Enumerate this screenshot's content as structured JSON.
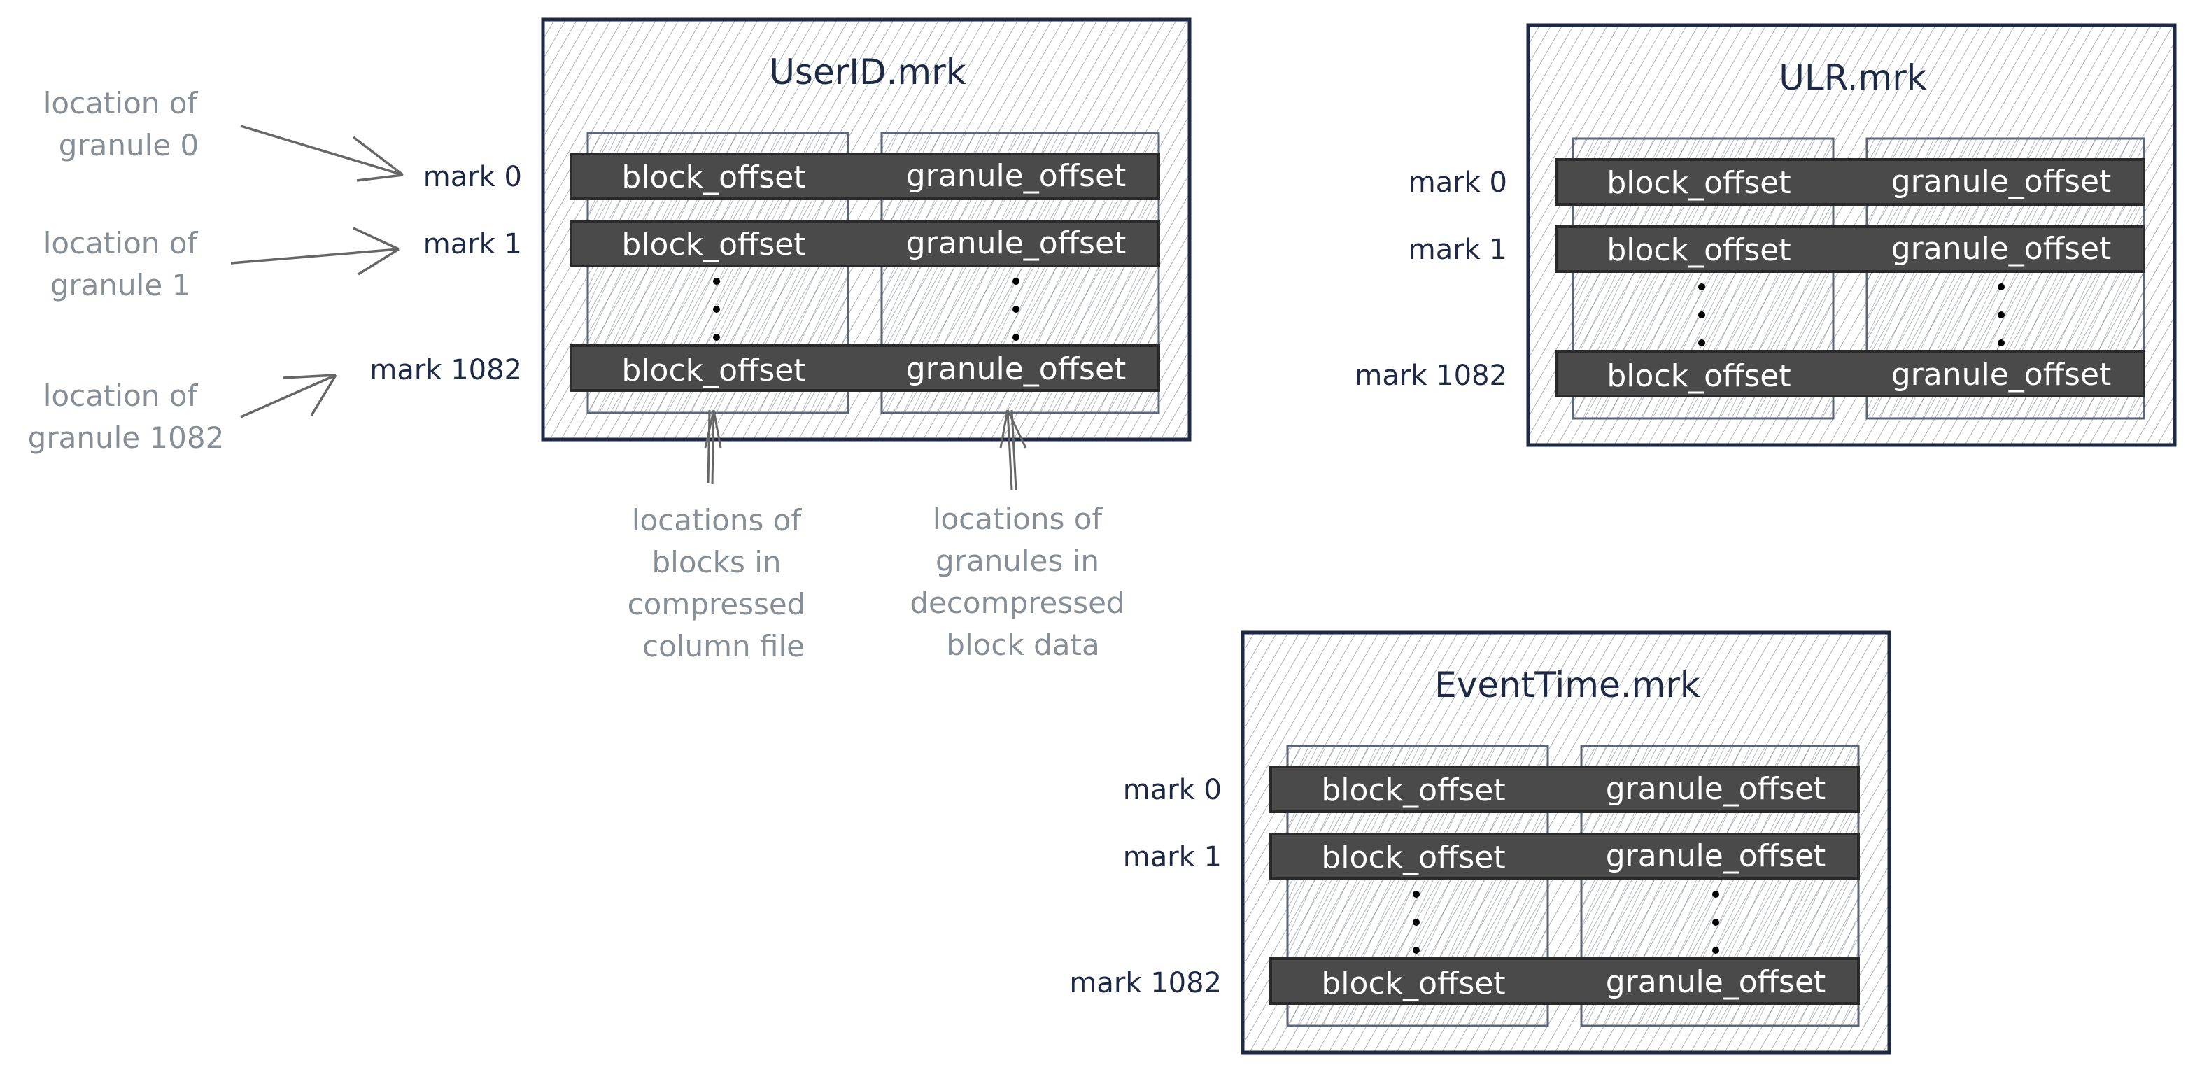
{
  "files": [
    {
      "title": "UserID.mrk",
      "marks": [
        "mark 0",
        "mark 1",
        "mark 1082"
      ],
      "block_label": "block_offset",
      "granule_label": "granule_offset"
    },
    {
      "title": "ULR.mrk",
      "marks": [
        "mark 0",
        "mark 1",
        "mark 1082"
      ],
      "block_label": "block_offset",
      "granule_label": "granule_offset"
    },
    {
      "title": "EventTime.mrk",
      "marks": [
        "mark 0",
        "mark 1",
        "mark 1082"
      ],
      "block_label": "block_offset",
      "granule_label": "granule_offset"
    }
  ],
  "annotations": {
    "granule_locations": [
      [
        "location of",
        "granule 0"
      ],
      [
        "location of",
        "granule 1"
      ],
      [
        "location of",
        "granule 1082"
      ]
    ],
    "blocks_note": [
      "locations of",
      "blocks in",
      "compressed",
      "column file"
    ],
    "granules_note": [
      "locations of",
      "granules in",
      "decompressed",
      "block data"
    ]
  },
  "colors": {
    "ink": "#1e2a45",
    "row_fill": "#4a4a4a",
    "note": "#868e96",
    "hatch": "#8f97a6"
  }
}
